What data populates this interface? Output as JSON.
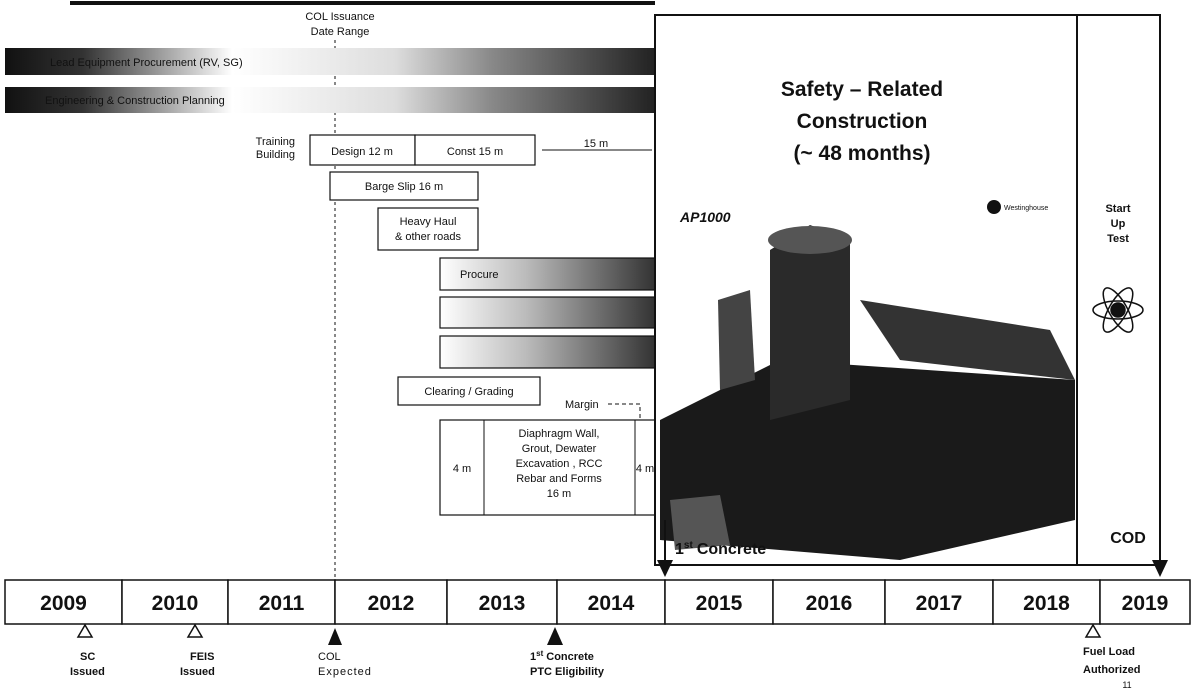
{
  "header": {
    "col_range": [
      "COL Issuance",
      "Date Range"
    ]
  },
  "bars": [
    {
      "label": "Lead Equipment Procurement (RV, SG)"
    },
    {
      "label": "Engineering & Construction Planning"
    }
  ],
  "training": {
    "label": [
      "Training",
      "Building"
    ],
    "design": "Design 12 m",
    "const": "Const 15 m",
    "gap": "15 m"
  },
  "tasks": {
    "barge": "Barge Slip 16 m",
    "haul": [
      "Heavy Haul",
      "& other roads"
    ],
    "procure": "Procure",
    "clearing": "Clearing / Grading",
    "margin": "Margin"
  },
  "excavation": {
    "before": "4 m",
    "lines": [
      "Diaphragm Wall,",
      "Grout, Dewater",
      "Excavation , RCC",
      "Rebar and Forms",
      "16 m"
    ],
    "after": "4 m"
  },
  "panel": {
    "title": [
      "Safety – Related",
      "Construction",
      "(~ 48 months)"
    ],
    "model": "AP1000",
    "brand": "Westinghouse",
    "startup": [
      "Start",
      "Up",
      "Test"
    ]
  },
  "markers": {
    "first_concrete": {
      "number": "1",
      "suffix": "st",
      "text": "Concrete"
    },
    "cod": "COD"
  },
  "years": [
    "2009",
    "2010",
    "2011",
    "2012",
    "2013",
    "2014",
    "2015",
    "2016",
    "2017",
    "2018",
    "2019"
  ],
  "milestones": {
    "sc": [
      "SC",
      "Issued"
    ],
    "feis": [
      "FEIS",
      "Issued"
    ],
    "col": [
      "COL",
      "Expected"
    ],
    "ptc": {
      "number": "1",
      "suffix": "st",
      "text": "Concrete",
      "line2": "PTC Eligibility"
    },
    "fuel": [
      "Fuel Load",
      "Authorized"
    ]
  },
  "page_number": "11"
}
